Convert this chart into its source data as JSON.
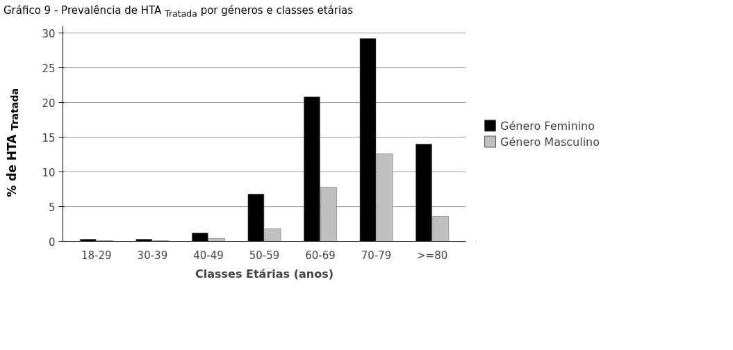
{
  "chart_data": {
    "type": "bar",
    "title": "Gráfico 9 - Prevalência de HTA $_{Tratada}$ por géneros e classes etárias",
    "xlabel": "Classes Etárias (anos)",
    "ylabel": "% de HTA $_{Tratada}$",
    "categories": [
      "18-29",
      "30-39",
      "40-49",
      "50-59",
      "60-69",
      "70-79",
      ">=80"
    ],
    "series": [
      {
        "name": "Género Feminino",
        "color": "#000000",
        "values": [
          0.3,
          0.3,
          1.2,
          6.8,
          20.8,
          29.2,
          14.0
        ]
      },
      {
        "name": "Género Masculino",
        "color": "#c0c0c0",
        "values": [
          0.1,
          0.1,
          0.4,
          1.8,
          7.8,
          12.6,
          3.6
        ]
      }
    ],
    "ylim": [
      0,
      31
    ],
    "yticks": [
      0,
      5,
      10,
      15,
      20,
      25,
      30
    ],
    "grid": "y",
    "legend": "right"
  }
}
